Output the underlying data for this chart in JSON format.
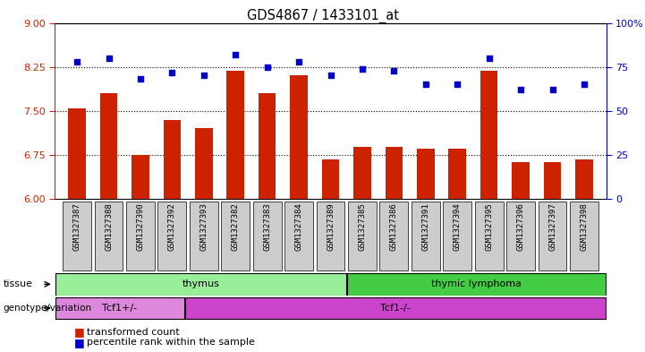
{
  "title": "GDS4867 / 1433101_at",
  "samples": [
    "GSM1327387",
    "GSM1327388",
    "GSM1327390",
    "GSM1327392",
    "GSM1327393",
    "GSM1327382",
    "GSM1327383",
    "GSM1327384",
    "GSM1327389",
    "GSM1327385",
    "GSM1327386",
    "GSM1327391",
    "GSM1327394",
    "GSM1327395",
    "GSM1327396",
    "GSM1327397",
    "GSM1327398"
  ],
  "bar_values": [
    7.55,
    7.8,
    6.75,
    7.35,
    7.2,
    8.18,
    7.8,
    8.1,
    6.68,
    6.88,
    6.88,
    6.85,
    6.85,
    8.18,
    6.62,
    6.62,
    6.68
  ],
  "dot_values": [
    78,
    80,
    68,
    72,
    70,
    82,
    75,
    78,
    70,
    74,
    73,
    65,
    65,
    80,
    62,
    62,
    65
  ],
  "ylim_left": [
    6,
    9
  ],
  "ylim_right": [
    0,
    100
  ],
  "yticks_left": [
    6,
    6.75,
    7.5,
    8.25,
    9
  ],
  "yticks_right": [
    0,
    25,
    50,
    75,
    100
  ],
  "bar_color": "#CC2200",
  "dot_color": "#0000CC",
  "tissue_groups": [
    {
      "label": "thymus",
      "start": 0,
      "end": 9,
      "color": "#99EE99"
    },
    {
      "label": "thymic lymphoma",
      "start": 9,
      "end": 17,
      "color": "#44CC44"
    }
  ],
  "genotype_groups": [
    {
      "label": "Tcf1+/-",
      "start": 0,
      "end": 4,
      "color": "#DD88DD"
    },
    {
      "label": "Tcf1-/-",
      "start": 4,
      "end": 17,
      "color": "#CC44CC"
    }
  ],
  "legend_items": [
    {
      "label": "transformed count",
      "color": "#CC2200"
    },
    {
      "label": "percentile rank within the sample",
      "color": "#0000CC"
    }
  ],
  "background_color": "#ffffff",
  "plot_bg": "#ffffff",
  "tick_bg": "#cccccc"
}
